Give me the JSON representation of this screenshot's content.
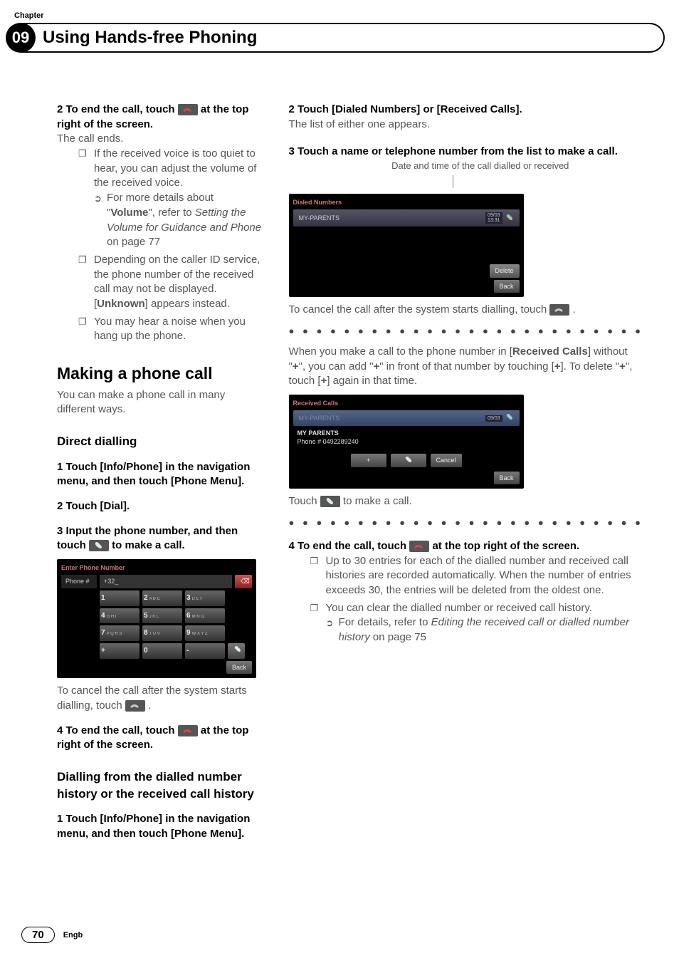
{
  "header": {
    "chapter_label": "Chapter",
    "chapter_number": "09",
    "title": "Using Hands-free Phoning"
  },
  "footer": {
    "page_number": "70",
    "lang": "Engb"
  },
  "colors": {
    "body_text": "#555555",
    "black": "#000000",
    "screenshot_bg": "#000000",
    "btn_grad_top": "#777777",
    "btn_grad_bot": "#444444"
  },
  "left": {
    "step2": "2    To end the call, touch ",
    "step2b": " at the top right of the screen.",
    "call_ends": "The call ends.",
    "bul1a": "If the received voice is too quiet to hear, you can adjust the volume of the received voice.",
    "bul1b_pre": "For more details about \"",
    "bul1b_bold": "Volume",
    "bul1b_post": "\", refer to ",
    "bul1b_italic": "Setting the Volume for Guidance and Phone",
    "bul1b_end": " on page 77",
    "bul2a": "Depending on the caller ID service, the phone number of the received call may not be displayed. [",
    "bul2b": "Unknown",
    "bul2c": "] appears instead.",
    "bul3": "You may hear a noise when you hang up the phone.",
    "h2": "Making a phone call",
    "h2_body": "You can make a phone call in many different ways.",
    "h3a": "Direct dialling",
    "d_step1": "1    Touch [Info/Phone] in the navigation menu, and then touch [Phone Menu].",
    "d_step2": "2    Touch [Dial].",
    "d_step3a": "3    Input the phone number, and then touch ",
    "d_step3b": " to make a call.",
    "ss_dial": {
      "title": "Enter Phone Number",
      "field_label": "Phone #",
      "field_value": "+32_",
      "keys": [
        [
          "1",
          "2 A B C",
          "3 D E F"
        ],
        [
          "4 G H I",
          "5 J K L",
          "6 M N O"
        ],
        [
          "7 P Q R S",
          "8 T U V",
          "9 W X Y Z"
        ],
        [
          "+",
          "0",
          "-"
        ]
      ],
      "back": "Back"
    },
    "cancel_text_a": "To cancel the call after the system starts dialling, touch ",
    "cancel_text_b": ".",
    "d_step4a": "4    To end the call, touch ",
    "d_step4b": " at the top right of the screen.",
    "h3b": "Dialling from the dialled number history or the received call history",
    "h_step1": "1    Touch [Info/Phone] in the navigation menu, and then touch [Phone Menu]."
  },
  "right": {
    "step2": "2    Touch [Dialed Numbers] or [Received Calls].",
    "step2_body": "The list of either one appears.",
    "step3": "3    Touch a name or telephone number from the list to make a call.",
    "caption": "Date and time of the call dialled or received",
    "ss_hist": {
      "title": "Dialed Numbers",
      "entry": "MY-PARENTS",
      "date": "09/03\n13:31",
      "delete": "Delete",
      "back": "Back"
    },
    "cancel_a": "To cancel the call after the system starts dialling, touch ",
    "cancel_b": ".",
    "para2_a": "When you make a call to the phone number in [",
    "para2_b": "Received Calls",
    "para2_c": "] without \"",
    "para2_d": "+",
    "para2_e": "\", you can add \"",
    "para2_f": "+",
    "para2_g": "\" in front of that number by touching [",
    "para2_h": "+",
    "para2_i": "]. To delete \"",
    "para2_j": "+",
    "para2_k": "\", touch [",
    "para2_l": "+",
    "para2_m": "] again in that time.",
    "ss_recv": {
      "title": "Received Calls",
      "highlight": "MY-PARENTS",
      "date": "09/03",
      "name": "MY PARENTS",
      "phone": "Phone # 0492289240",
      "plus": "+",
      "cancel": "Cancel",
      "back": "Back"
    },
    "touch_make_a": "Touch ",
    "touch_make_b": " to make a call.",
    "step4a": "4    To end the call, touch ",
    "step4b": " at the top right of the screen.",
    "bul1": "Up to 30 entries for each of the dialled number and received call histories are recorded automatically. When the number of entries exceeds 30, the entries will be deleted from the oldest one.",
    "bul2a": "You can clear the dialled number or received call history.",
    "bul2b_pre": "For details, refer to ",
    "bul2b_italic": "Editing the received call or dialled number history",
    "bul2b_post": " on page 75"
  }
}
